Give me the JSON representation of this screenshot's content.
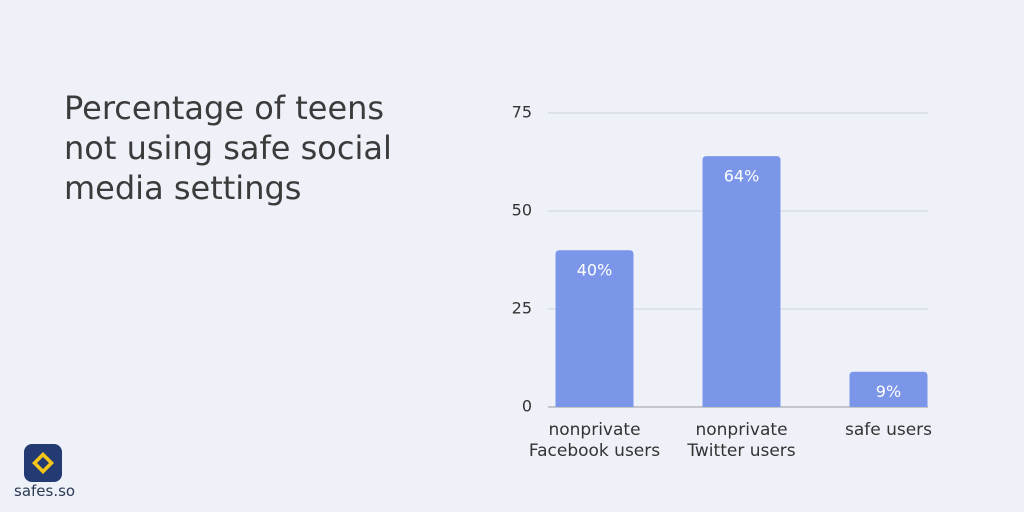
{
  "chart_data": {
    "type": "bar",
    "title": "Percentage of teens not using safe social media settings",
    "categories": [
      "nonprivate Facebook users",
      "nonprivate Twitter users",
      "safe users"
    ],
    "values": [
      40,
      64,
      9
    ],
    "value_labels": [
      "40%",
      "64%",
      "9%"
    ],
    "color": "#7b96e8",
    "ylim": [
      0,
      75
    ],
    "yticks": [
      0,
      25,
      50,
      75
    ],
    "grid": true
  },
  "brand": "safes.so"
}
